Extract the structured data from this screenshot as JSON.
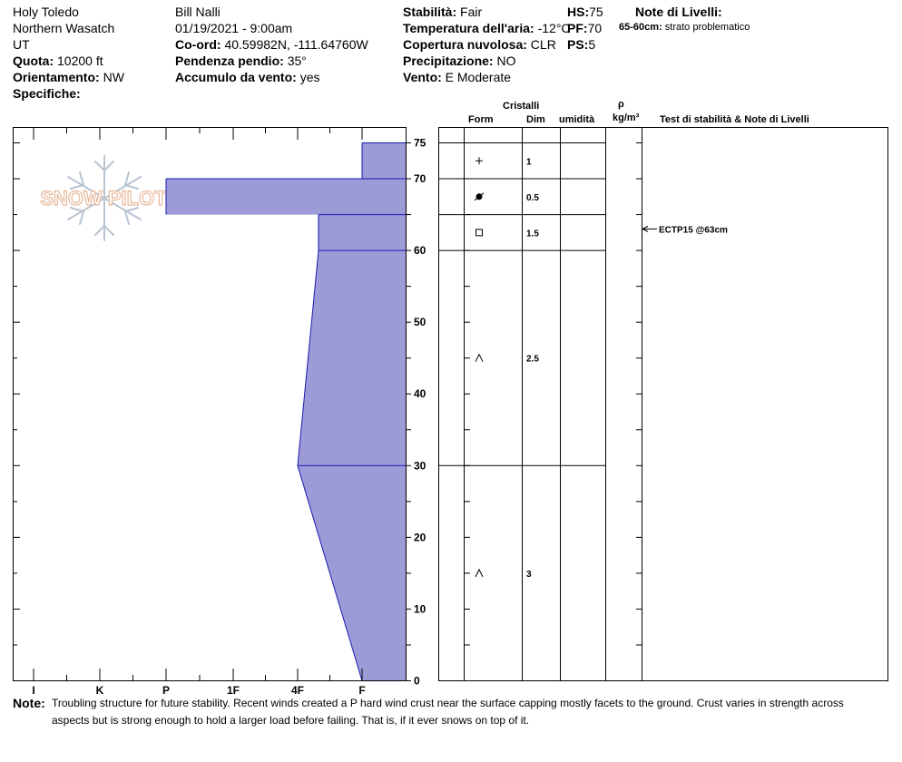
{
  "header": {
    "location": "Holy Toledo",
    "region": "Northern Wasatch",
    "state": "UT",
    "elevation": {
      "label": "Quota:",
      "value": "10200 ft"
    },
    "aspect": {
      "label": "Orientamento:",
      "value": "NW"
    },
    "specifics": {
      "label": "Specifiche:",
      "value": ""
    },
    "observer": "Bill Nalli",
    "datetime": "01/19/2021 - 9:00am",
    "coords": {
      "label": "Co-ord:",
      "value": "40.59982N, -111.64760W"
    },
    "slope": {
      "label": "Pendenza pendio:",
      "value": "35°"
    },
    "wind_loading": {
      "label": "Accumulo da vento:",
      "value": "yes"
    },
    "stability": {
      "label": "Stabilità:",
      "value": "Fair"
    },
    "air_temp": {
      "label": "Temperatura dell'aria:",
      "value": "-12°C"
    },
    "sky": {
      "label": "Copertura nuvolosa:",
      "value": "CLR"
    },
    "precip": {
      "label": "Precipitazione:",
      "value": "NO"
    },
    "wind": {
      "label": "Vento:",
      "value": "E Moderate"
    },
    "hs": {
      "label": "HS:",
      "value": "75"
    },
    "pf": {
      "label": "PF:",
      "value": "70"
    },
    "ps": {
      "label": "PS:",
      "value": "5"
    },
    "layer_notes_title": "Note di Livelli:",
    "layer_notes": [
      {
        "range": "65-60cm:",
        "text": "strato problematico"
      }
    ]
  },
  "columns": {
    "crystals": "Cristalli",
    "form": "Form",
    "dim": "Dim",
    "moisture": "umidità",
    "rho": "ρ",
    "density_unit": "kg/m³",
    "stability_tests": "Test di stabilità & Note di Livelli"
  },
  "watermark": "SNOW PILOT",
  "chart_data": {
    "type": "area",
    "title": "",
    "xlabel": "",
    "ylabel": "",
    "hardness_scale": [
      "I",
      "K",
      "P",
      "1F",
      "4F",
      "F"
    ],
    "depth_ticks": [
      0,
      10,
      20,
      30,
      40,
      50,
      60,
      70,
      75
    ],
    "ylim": [
      0,
      75
    ],
    "hardness_profile": [
      {
        "top": 75,
        "bottom": 70,
        "hardness_top": "F",
        "hardness_bottom": "F"
      },
      {
        "top": 70,
        "bottom": 65,
        "hardness_top": "P",
        "hardness_bottom": "P"
      },
      {
        "top": 65,
        "bottom": 60,
        "hardness_top": "4F+",
        "hardness_bottom": "4F+"
      },
      {
        "top": 60,
        "bottom": 30,
        "hardness_top": "4F+",
        "hardness_bottom": "4F"
      },
      {
        "top": 30,
        "bottom": 0,
        "hardness_top": "4F",
        "hardness_bottom": "F"
      }
    ],
    "layer_boundaries": [
      70,
      65,
      60,
      30
    ],
    "crystals": [
      {
        "depth": 72.5,
        "form": "+",
        "dim": "1"
      },
      {
        "depth": 67.5,
        "form": "●",
        "dim": "0.5"
      },
      {
        "depth": 62.5,
        "form": "□",
        "dim": "1.5"
      },
      {
        "depth": 45,
        "form": "^",
        "dim": "2.5"
      },
      {
        "depth": 15,
        "form": "^",
        "dim": "3"
      }
    ],
    "tests": [
      {
        "depth": 63,
        "label": "ECTP15 @63cm"
      }
    ]
  },
  "note": {
    "label": "Note:",
    "line1": "Troubling structure for future stability. Recent winds created a P hard wind crust near the surface capping mostly facets to the ground. Crust varies in strength across",
    "line2": "aspects but is strong enough to hold a larger load before failing. That is, if it ever snows on top of it."
  },
  "colors": {
    "profile_fill": "#9c9bd8",
    "profile_line": "#1a1ab0",
    "watermark": "#e8b89a",
    "snowflake": "#b8c4d2"
  }
}
